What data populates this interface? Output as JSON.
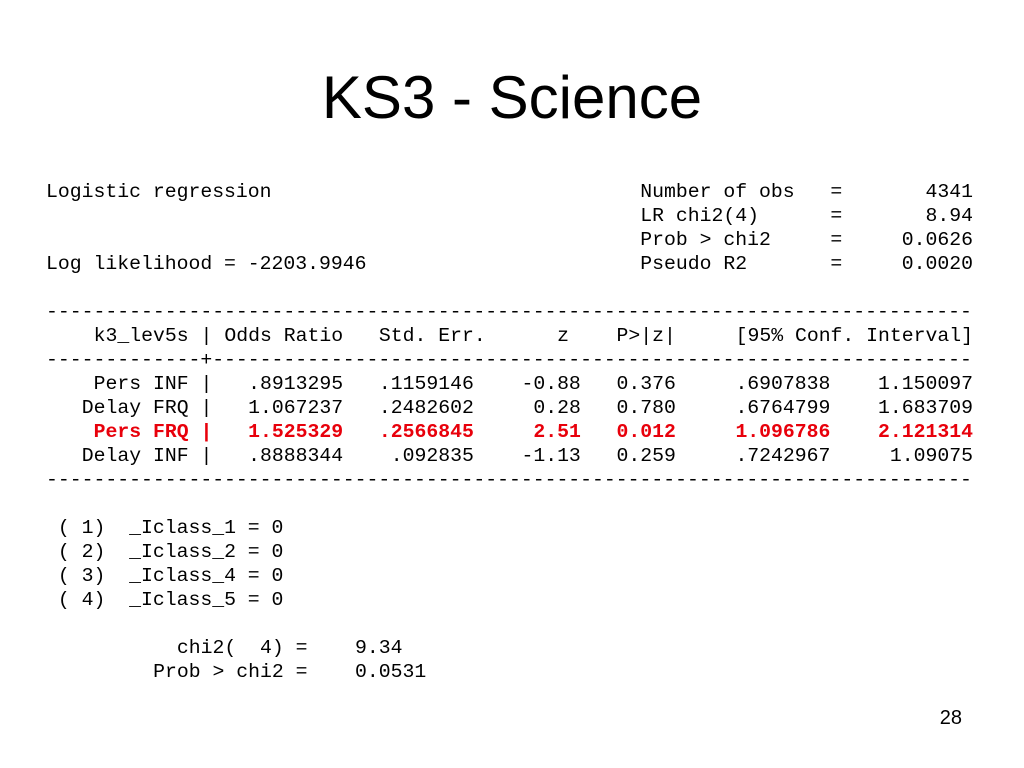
{
  "title": "KS3 - Science",
  "output": {
    "model": "Logistic regression",
    "log_likelihood": "Log likelihood = -2203.9946",
    "stats": [
      {
        "label": "Number of obs",
        "sign": "=",
        "value": "4341"
      },
      {
        "label": "LR chi2(4)",
        "sign": "=",
        "value": "8.94"
      },
      {
        "label": "Prob > chi2",
        "sign": "=",
        "value": "0.0626"
      },
      {
        "label": "Pseudo R2",
        "sign": "=",
        "value": "0.0020"
      }
    ],
    "rule": "------------------------------------------------------------------------------",
    "table": {
      "columns": [
        "k3_lev5s",
        "Odds Ratio",
        "Std. Err.",
        "z",
        "P>|z|",
        "[95% Conf. Interval]"
      ],
      "divider": "|",
      "separator": "-------------+----------------------------------------------------------------",
      "rows": [
        [
          "Pers INF",
          ".8913295",
          ".1159146",
          "-0.88",
          "0.376",
          ".6907838",
          "1.150097"
        ],
        [
          "Delay FRQ",
          "1.067237",
          ".2482602",
          "0.28",
          "0.780",
          ".6764799",
          "1.683709"
        ],
        [
          "Pers FRQ",
          "1.525329",
          ".2566845",
          "2.51",
          "0.012",
          "1.096786",
          "2.121314"
        ],
        [
          "Delay INF",
          ".8888344",
          ".092835",
          "-1.13",
          "0.259",
          ".7242967",
          "1.09075"
        ]
      ],
      "highlighted_row": 2,
      "highlight_color": "#e8000b"
    },
    "constraints": [
      "( 1)  _Iclass_1 = 0",
      "( 2)  _Iclass_2 = 0",
      "( 3)  _Iclass_4 = 0",
      "( 4)  _Iclass_5 = 0"
    ],
    "test": [
      {
        "label": "chi2(  4) =",
        "value": "9.34"
      },
      {
        "label": "Prob > chi2 =",
        "value": "0.0531"
      }
    ]
  },
  "page_number": "28"
}
